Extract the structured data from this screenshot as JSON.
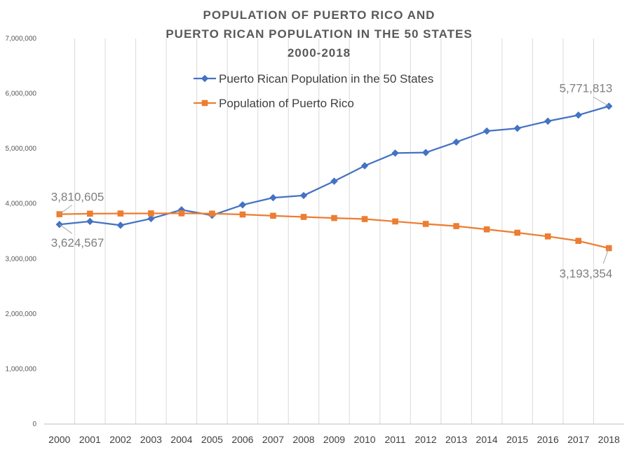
{
  "chart_data": {
    "type": "line",
    "title_lines": [
      "POPULATION OF PUERTO RICO AND",
      "PUERTO RICAN POPULATION IN THE 50 STATES",
      "2000-2018"
    ],
    "xlabel": "",
    "ylabel": "",
    "ylim": [
      0,
      7000000
    ],
    "ytick_values": [
      0,
      1000000,
      2000000,
      3000000,
      4000000,
      5000000,
      6000000,
      7000000
    ],
    "ytick_labels": [
      "0",
      "1,000,000",
      "2,000,000",
      "3,000,000",
      "4,000,000",
      "5,000,000",
      "6,000,000",
      "7,000,000"
    ],
    "grid": true,
    "legend_placement": "top-center",
    "categories": [
      "2000",
      "2001",
      "2002",
      "2003",
      "2004",
      "2005",
      "2006",
      "2007",
      "2008",
      "2009",
      "2010",
      "2011",
      "2012",
      "2013",
      "2014",
      "2015",
      "2016",
      "2017",
      "2018"
    ],
    "series": [
      {
        "name": "Puerto Rican Population in the 50 States",
        "color": "#4472c4",
        "marker": "diamond",
        "values": [
          3624567,
          3680000,
          3610000,
          3730000,
          3890000,
          3790000,
          3980000,
          4110000,
          4150000,
          4410000,
          4690000,
          4920000,
          4930000,
          5120000,
          5320000,
          5370000,
          5500000,
          5610000,
          5771813
        ]
      },
      {
        "name": "Population of Puerto Rico",
        "color": "#ed7d31",
        "marker": "square",
        "values": [
          3810605,
          3820000,
          3823000,
          3825000,
          3826000,
          3821000,
          3805000,
          3782000,
          3761000,
          3741000,
          3722000,
          3679000,
          3634000,
          3594000,
          3535000,
          3474000,
          3407000,
          3326000,
          3193354
        ]
      }
    ],
    "data_labels": [
      {
        "text": "3,810,605",
        "series": 1,
        "index": 0,
        "position": "above"
      },
      {
        "text": "3,624,567",
        "series": 0,
        "index": 0,
        "position": "below"
      },
      {
        "text": "5,771,813",
        "series": 0,
        "index": 18,
        "position": "above"
      },
      {
        "text": "3,193,354",
        "series": 1,
        "index": 18,
        "position": "below"
      }
    ]
  }
}
